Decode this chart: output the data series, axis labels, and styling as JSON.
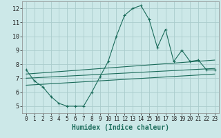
{
  "background_color": "#cce8e8",
  "grid_color": "#aacccc",
  "line_color": "#1a6b5a",
  "x_label": "Humidex (Indice chaleur)",
  "ylim": [
    4.5,
    12.5
  ],
  "xlim": [
    -0.5,
    23.5
  ],
  "yticks": [
    5,
    6,
    7,
    8,
    9,
    10,
    11,
    12
  ],
  "xticks": [
    0,
    1,
    2,
    3,
    4,
    5,
    6,
    7,
    8,
    9,
    10,
    11,
    12,
    13,
    14,
    15,
    16,
    17,
    18,
    19,
    20,
    21,
    22,
    23
  ],
  "line1_x": [
    0,
    1,
    2,
    3,
    4,
    5,
    6,
    7,
    8,
    9,
    10,
    11,
    12,
    13,
    14,
    15,
    16,
    17,
    18,
    19,
    20,
    21,
    22,
    23
  ],
  "line1_y": [
    7.6,
    6.8,
    6.4,
    5.7,
    5.2,
    5.0,
    5.0,
    5.0,
    6.0,
    7.1,
    8.2,
    10.0,
    11.5,
    12.0,
    12.2,
    11.2,
    9.2,
    10.5,
    8.2,
    9.0,
    8.2,
    8.3,
    7.6,
    7.6
  ],
  "line2_x": [
    0,
    23
  ],
  "line2_y": [
    7.3,
    8.3
  ],
  "line3_x": [
    0,
    23
  ],
  "line3_y": [
    7.0,
    7.7
  ],
  "line4_x": [
    0,
    23
  ],
  "line4_y": [
    6.5,
    7.3
  ],
  "tick_fontsize": 5.5,
  "xlabel_fontsize": 7
}
